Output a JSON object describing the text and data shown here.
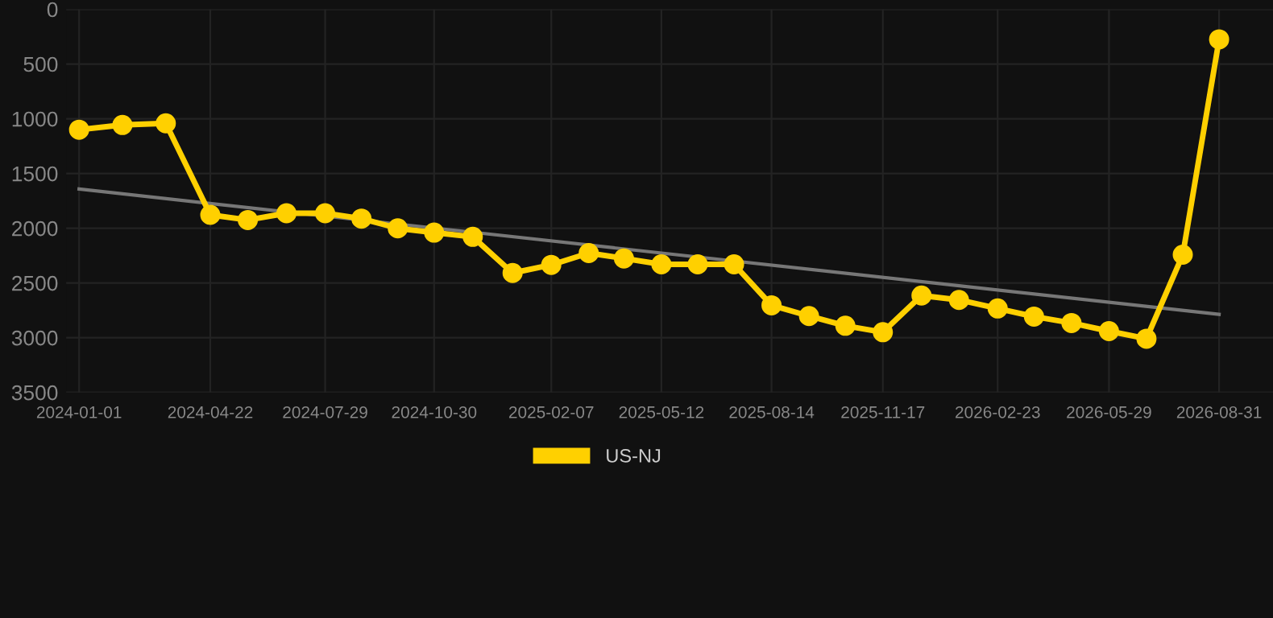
{
  "chart_data": {
    "type": "line",
    "x": [
      "2024-01-01",
      "2024-02-07",
      "2024-03-15",
      "2024-04-22",
      "2024-05-24",
      "2024-06-26",
      "2024-07-29",
      "2024-08-29",
      "2024-09-29",
      "2024-10-30",
      "2024-12-02",
      "2025-01-05",
      "2025-02-07",
      "2025-03-11",
      "2025-04-10",
      "2025-05-12",
      "2025-06-12",
      "2025-07-13",
      "2025-08-14",
      "2025-09-15",
      "2025-10-16",
      "2025-11-17",
      "2025-12-20",
      "2026-01-21",
      "2026-02-23",
      "2026-03-26",
      "2026-04-27",
      "2026-05-29",
      "2026-06-30",
      "2026-07-31",
      "2026-08-31"
    ],
    "series": [
      {
        "name": "US-NJ",
        "color": "#ffd000",
        "marker": "circle",
        "values": [
          1100,
          1057,
          1042,
          1878,
          1925,
          1863,
          1863,
          1912,
          2001,
          2040,
          2079,
          2409,
          2335,
          2227,
          2276,
          2330,
          2330,
          2330,
          2704,
          2802,
          2891,
          2950,
          2615,
          2655,
          2733,
          2807,
          2866,
          2940,
          3009,
          2242,
          275
        ]
      },
      {
        "type": "line",
        "color": "#777777",
        "marker": "none",
        "x": [
          "2024-01-01",
          "2026-08-31"
        ],
        "values": [
          1642,
          2787
        ]
      }
    ],
    "xlim": [
      "2023-12-21",
      "2026-10-16"
    ],
    "xticks": [
      "2024-01-01",
      "2024-04-22",
      "2024-07-29",
      "2024-10-30",
      "2025-02-07",
      "2025-05-12",
      "2025-08-14",
      "2025-11-17",
      "2026-02-23",
      "2026-05-29",
      "2026-08-31"
    ],
    "ylim": [
      3500,
      0
    ],
    "yticks": [
      0,
      500,
      1000,
      1500,
      2000,
      2500,
      3000,
      3500
    ],
    "grid": true,
    "legend": "bottom"
  }
}
